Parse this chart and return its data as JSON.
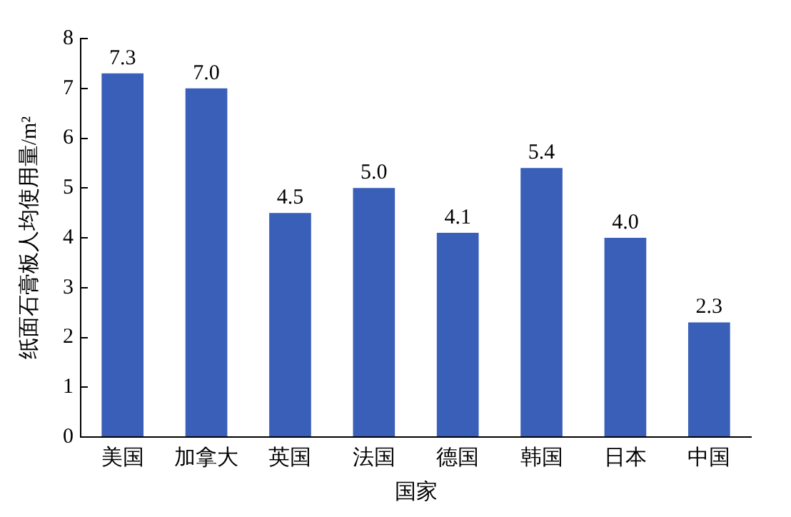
{
  "chart_data": {
    "type": "bar",
    "xlabel": "国家",
    "ylabel": "纸面石膏板人均使用量/m²",
    "categories": [
      "美国",
      "加拿大",
      "英国",
      "法国",
      "德国",
      "韩国",
      "日本",
      "中国"
    ],
    "values": [
      7.3,
      7.0,
      4.5,
      5.0,
      4.1,
      5.4,
      4.0,
      2.3
    ],
    "value_labels": [
      "7.3",
      "7.0",
      "4.5",
      "5.0",
      "4.1",
      "5.4",
      "4.0",
      "2.3"
    ],
    "color": "#3a5fb8",
    "ylim": [
      0,
      8
    ],
    "yticks": [
      0,
      1,
      2,
      3,
      4,
      5,
      6,
      7,
      8
    ],
    "grid": false,
    "legend": false
  }
}
